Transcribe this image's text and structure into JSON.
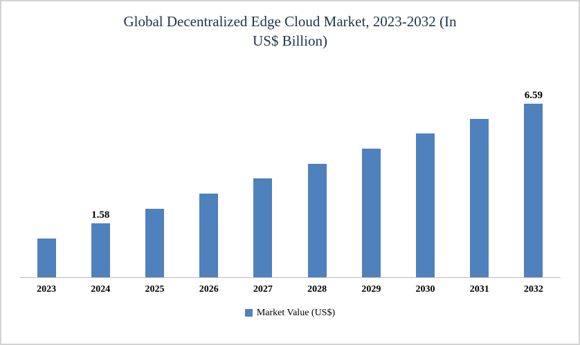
{
  "chart_data": {
    "type": "bar",
    "title": "Global Decentralized Edge Cloud Market, 2023-2032 (In US$ Billion)",
    "title_lines": [
      "Global Decentralized Edge Cloud Market, 2023-2032 (In",
      "US$ Billion)"
    ],
    "categories": [
      "2023",
      "2024",
      "2025",
      "2026",
      "2027",
      "2028",
      "2029",
      "2030",
      "2031",
      "2032"
    ],
    "series": [
      {
        "name": "Market Value (US$)",
        "values": [
          0.95,
          1.58,
          2.21,
          2.83,
          3.46,
          4.08,
          4.71,
          5.34,
          5.96,
          6.59
        ]
      }
    ],
    "data_labels": [
      "",
      "1.58",
      "",
      "",
      "",
      "",
      "",
      "",
      "",
      "6.59"
    ],
    "bar_color": "#4F81BD",
    "axis_line_color": "#BDBDBD",
    "xlabel": "",
    "ylabel": "",
    "ylim": [
      0,
      7
    ],
    "grid": false,
    "legend_position": "bottom"
  }
}
